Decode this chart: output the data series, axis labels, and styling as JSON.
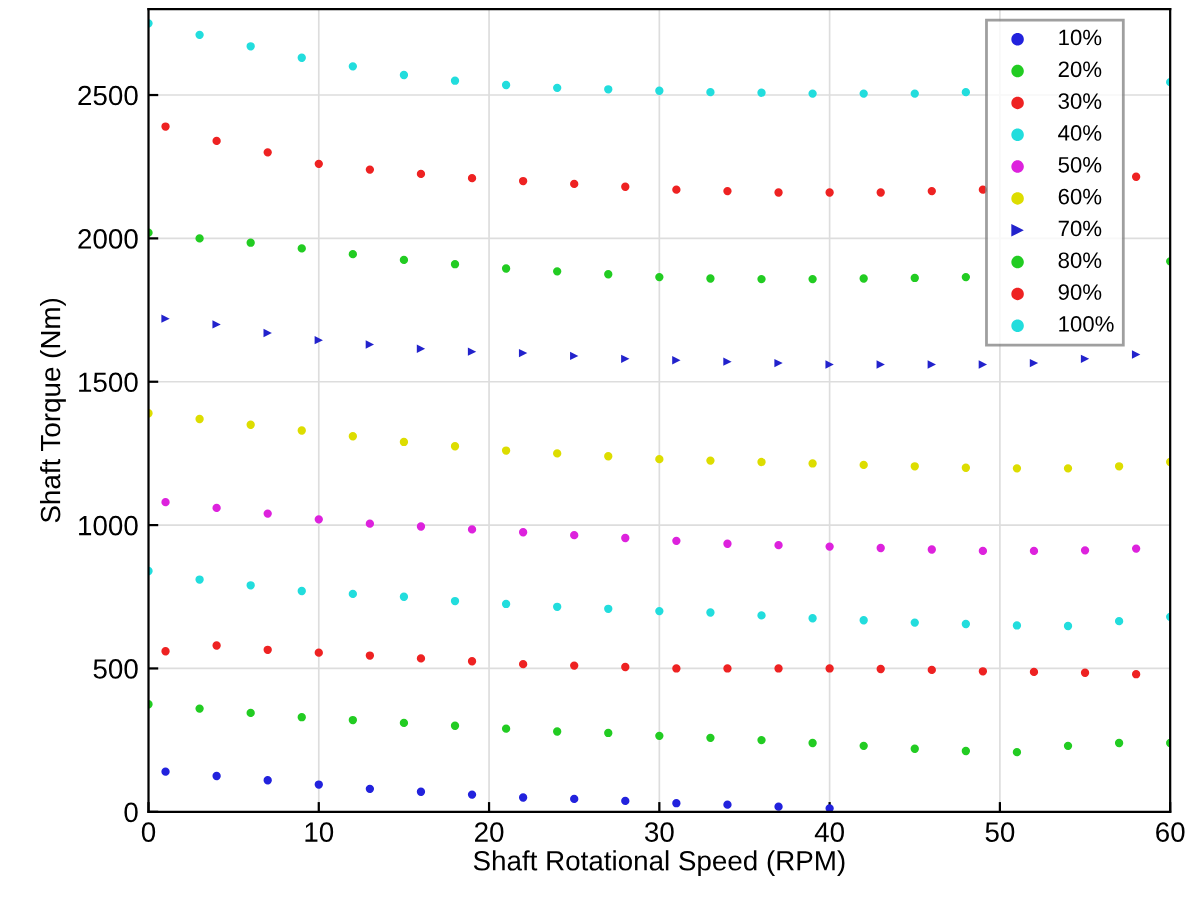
{
  "chart_data": {
    "type": "scatter",
    "xlabel": "Shaft Rotational Speed (RPM)",
    "ylabel": "Shaft Torque (Nm)",
    "xlim": [
      0,
      60
    ],
    "ylim": [
      0,
      2800
    ],
    "xticks": [
      0,
      10,
      20,
      30,
      40,
      50,
      60
    ],
    "yticks": [
      0,
      500,
      1000,
      1500,
      2000,
      2500
    ],
    "grid": true,
    "legend": "top right",
    "series": [
      {
        "name": "10%",
        "color": "#2222dd",
        "marker": "circle",
        "x": [
          1,
          4,
          7,
          10,
          13,
          16,
          19,
          22,
          25,
          28,
          31,
          34,
          37,
          40
        ],
        "values": [
          140,
          125,
          110,
          95,
          80,
          70,
          60,
          50,
          45,
          38,
          30,
          25,
          18,
          12
        ]
      },
      {
        "name": "20%",
        "color": "#22cc22",
        "marker": "circle",
        "x": [
          0,
          3,
          6,
          9,
          12,
          15,
          18,
          21,
          24,
          27,
          30,
          33,
          36,
          39,
          42,
          45,
          48,
          51,
          54,
          57,
          60
        ],
        "values": [
          375,
          360,
          345,
          330,
          320,
          310,
          300,
          290,
          280,
          275,
          265,
          258,
          250,
          240,
          230,
          220,
          212,
          208,
          230,
          240,
          240
        ]
      },
      {
        "name": "30%",
        "color": "#ee2222",
        "marker": "circle",
        "x": [
          1,
          4,
          7,
          10,
          13,
          16,
          19,
          22,
          25,
          28,
          31,
          34,
          37,
          40,
          43,
          46,
          49,
          52,
          55,
          58
        ],
        "values": [
          560,
          580,
          565,
          555,
          545,
          535,
          525,
          515,
          510,
          505,
          500,
          500,
          500,
          500,
          498,
          495,
          490,
          488,
          485,
          480
        ]
      },
      {
        "name": "40%",
        "color": "#22dddd",
        "marker": "circle",
        "x": [
          0,
          3,
          6,
          9,
          12,
          15,
          18,
          21,
          24,
          27,
          30,
          33,
          36,
          39,
          42,
          45,
          48,
          51,
          54,
          57,
          60
        ],
        "values": [
          840,
          810,
          790,
          770,
          760,
          750,
          735,
          725,
          715,
          708,
          700,
          695,
          685,
          675,
          668,
          660,
          655,
          650,
          648,
          665,
          680
        ]
      },
      {
        "name": "50%",
        "color": "#dd22dd",
        "marker": "circle",
        "x": [
          1,
          4,
          7,
          10,
          13,
          16,
          19,
          22,
          25,
          28,
          31,
          34,
          37,
          40,
          43,
          46,
          49,
          52,
          55,
          58
        ],
        "values": [
          1080,
          1060,
          1040,
          1020,
          1005,
          995,
          985,
          975,
          965,
          955,
          945,
          935,
          930,
          925,
          920,
          915,
          910,
          910,
          912,
          918
        ]
      },
      {
        "name": "60%",
        "color": "#dddd00",
        "marker": "circle",
        "x": [
          0,
          3,
          6,
          9,
          12,
          15,
          18,
          21,
          24,
          27,
          30,
          33,
          36,
          39,
          42,
          45,
          48,
          51,
          54,
          57,
          60
        ],
        "values": [
          1390,
          1370,
          1350,
          1330,
          1310,
          1290,
          1275,
          1260,
          1250,
          1240,
          1230,
          1225,
          1220,
          1215,
          1210,
          1205,
          1200,
          1198,
          1198,
          1205,
          1220
        ]
      },
      {
        "name": "70%",
        "color": "#2222cc",
        "marker": "triangle",
        "x": [
          1,
          4,
          7,
          10,
          13,
          16,
          19,
          22,
          25,
          28,
          31,
          34,
          37,
          40,
          43,
          46,
          49,
          52,
          55,
          58
        ],
        "values": [
          1720,
          1700,
          1670,
          1645,
          1630,
          1615,
          1605,
          1600,
          1590,
          1580,
          1575,
          1570,
          1565,
          1560,
          1560,
          1560,
          1560,
          1565,
          1580,
          1595
        ]
      },
      {
        "name": "80%",
        "color": "#22cc22",
        "marker": "circle",
        "x": [
          0,
          3,
          6,
          9,
          12,
          15,
          18,
          21,
          24,
          27,
          30,
          33,
          36,
          39,
          42,
          45,
          48,
          51,
          54,
          57,
          60
        ],
        "values": [
          2020,
          2000,
          1985,
          1965,
          1945,
          1925,
          1910,
          1895,
          1885,
          1875,
          1865,
          1860,
          1858,
          1858,
          1860,
          1862,
          1865,
          null,
          null,
          null,
          1920
        ]
      },
      {
        "name": "90%",
        "color": "#ee2222",
        "marker": "circle",
        "x": [
          1,
          4,
          7,
          10,
          13,
          16,
          19,
          22,
          25,
          28,
          31,
          34,
          37,
          40,
          43,
          46,
          49,
          52,
          55,
          58
        ],
        "values": [
          2390,
          2340,
          2300,
          2260,
          2240,
          2225,
          2210,
          2200,
          2190,
          2180,
          2170,
          2165,
          2160,
          2160,
          2160,
          2165,
          2170,
          null,
          null,
          2215
        ]
      },
      {
        "name": "100%",
        "color": "#22dddd",
        "marker": "circle",
        "x": [
          0,
          3,
          6,
          9,
          12,
          15,
          18,
          21,
          24,
          27,
          30,
          33,
          36,
          39,
          42,
          45,
          48,
          51,
          54,
          57,
          60
        ],
        "values": [
          2750,
          2710,
          2670,
          2630,
          2600,
          2570,
          2550,
          2535,
          2525,
          2520,
          2515,
          2510,
          2508,
          2505,
          2505,
          2505,
          2510,
          null,
          null,
          null,
          2545
        ]
      }
    ]
  }
}
